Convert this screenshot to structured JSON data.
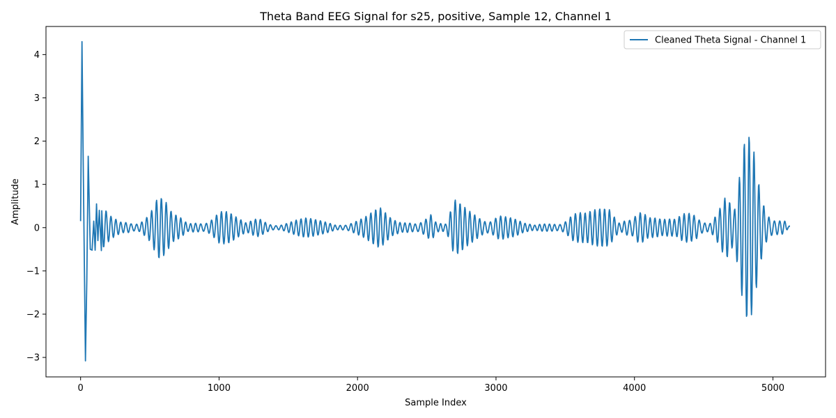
{
  "chart_data": {
    "type": "line",
    "title": "Theta Band EEG Signal for s25, positive, Sample 12, Channel 1",
    "xlabel": "Sample Index",
    "ylabel": "Amplitude",
    "xlim": [
      -250,
      5380
    ],
    "ylim": [
      -3.45,
      4.65
    ],
    "x_ticks": [
      0,
      1000,
      2000,
      3000,
      4000,
      5000
    ],
    "x_tick_labels": [
      "0",
      "1000",
      "2000",
      "3000",
      "4000",
      "5000"
    ],
    "y_ticks": [
      -3,
      -2,
      -1,
      0,
      1,
      2,
      3,
      4
    ],
    "y_tick_labels": [
      "−3",
      "−2",
      "−1",
      "0",
      "1",
      "2",
      "3",
      "4"
    ],
    "grid": false,
    "legend_position": "top-right",
    "series": [
      {
        "name": "Cleaned Theta Signal - Channel 1",
        "color": "#1f77b4",
        "n_samples": 5120,
        "oscillation_period": 36,
        "start_value": 0.15,
        "end_value": 0.05,
        "initial_transient": [
          [
            0,
            0.15
          ],
          [
            10,
            4.3
          ],
          [
            20,
            1.2
          ],
          [
            35,
            -3.08
          ],
          [
            45,
            -1.2
          ],
          [
            55,
            1.65
          ],
          [
            70,
            -0.5
          ],
          [
            83,
            -0.52
          ],
          [
            95,
            0.15
          ],
          [
            105,
            -0.52
          ],
          [
            115,
            0.55
          ],
          [
            125,
            -0.3
          ],
          [
            135,
            0.4
          ],
          [
            150,
            -0.53
          ]
        ],
        "envelope_points": [
          [
            150,
            0.5
          ],
          [
            220,
            0.3
          ],
          [
            300,
            0.22
          ],
          [
            350,
            0.38
          ],
          [
            420,
            0.22
          ],
          [
            500,
            0.42
          ],
          [
            560,
            0.75
          ],
          [
            610,
            0.6
          ],
          [
            660,
            0.33
          ],
          [
            720,
            0.26
          ],
          [
            780,
            0.12
          ],
          [
            860,
            0.3
          ],
          [
            930,
            0.38
          ],
          [
            1000,
            0.52
          ],
          [
            1060,
            0.4
          ],
          [
            1130,
            0.22
          ],
          [
            1200,
            0.1
          ],
          [
            1290,
            0.3
          ],
          [
            1380,
            0.2
          ],
          [
            1450,
            0.15
          ],
          [
            1550,
            0.2
          ],
          [
            1620,
            0.22
          ],
          [
            1700,
            0.18
          ],
          [
            1800,
            0.14
          ],
          [
            1850,
            0.1
          ],
          [
            1950,
            0.28
          ],
          [
            2050,
            0.3
          ],
          [
            2160,
            0.45
          ],
          [
            2250,
            0.2
          ],
          [
            2320,
            0.15
          ],
          [
            2450,
            0.38
          ],
          [
            2530,
            0.48
          ],
          [
            2570,
            0.12
          ],
          [
            2640,
            0.08
          ],
          [
            2700,
            0.62
          ],
          [
            2800,
            0.48
          ],
          [
            2900,
            0.45
          ],
          [
            3010,
            0.55
          ],
          [
            3080,
            0.3
          ],
          [
            3200,
            0.1
          ],
          [
            3280,
            0.06
          ],
          [
            3380,
            0.15
          ],
          [
            3470,
            0.3
          ],
          [
            3550,
            0.5
          ],
          [
            3650,
            0.35
          ],
          [
            3750,
            0.42
          ],
          [
            3820,
            0.48
          ],
          [
            3900,
            0.15
          ],
          [
            3950,
            0.6
          ],
          [
            4020,
            0.88
          ],
          [
            4100,
            0.3
          ],
          [
            4200,
            0.18
          ],
          [
            4300,
            0.2
          ],
          [
            4380,
            0.5
          ],
          [
            4450,
            0.72
          ],
          [
            4540,
            0.2
          ],
          [
            4600,
            0.5
          ],
          [
            4660,
            0.8
          ],
          [
            4720,
            0.35
          ],
          [
            4760,
            1.15
          ],
          [
            4800,
            2.1
          ],
          [
            4840,
            2.35
          ],
          [
            4870,
            2.1
          ],
          [
            4900,
            1.5
          ],
          [
            4950,
            0.85
          ],
          [
            5000,
            0.65
          ],
          [
            5050,
            0.45
          ],
          [
            5090,
            0.6
          ],
          [
            5120,
            0.3
          ]
        ]
      }
    ]
  }
}
